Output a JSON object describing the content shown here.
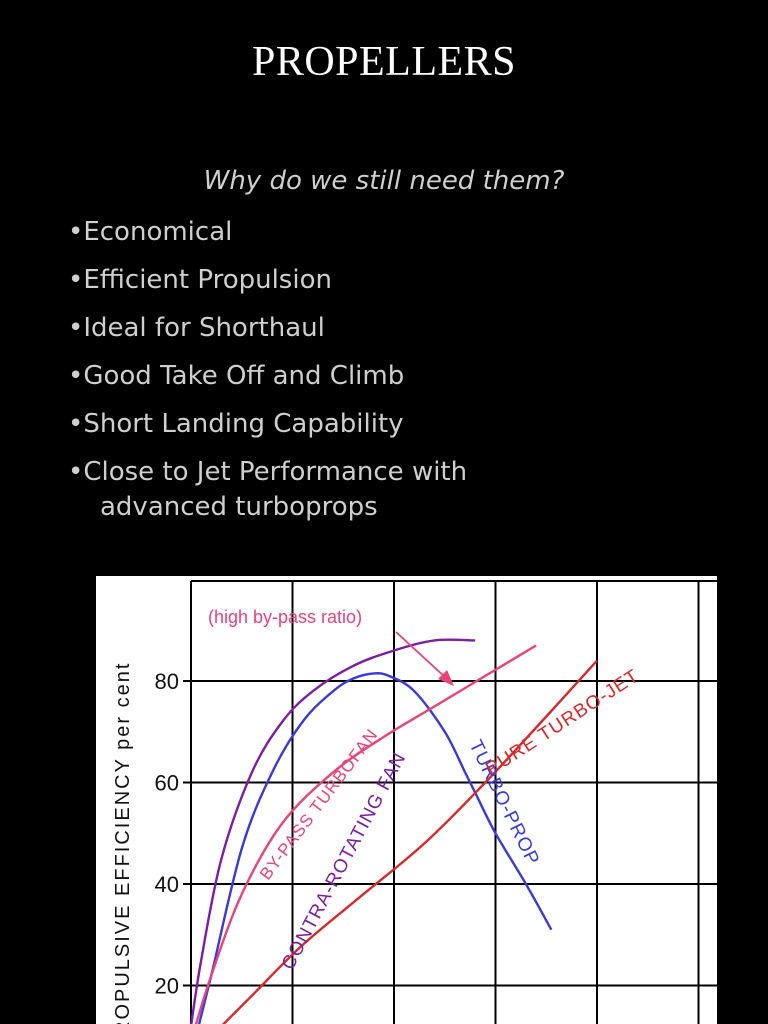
{
  "slide": {
    "title": "PROPELLERS",
    "subtitle": "Why do we still need them?",
    "bullets": [
      "•Economical",
      "•Efficient Propulsion",
      "•Ideal for Shorthaul",
      "•Good Take Off and Climb",
      "•Short Landing Capability",
      "•Close to Jet Performance with"
    ],
    "bullet_continuation": "advanced turboprops"
  },
  "chart_data": {
    "type": "line",
    "title": "",
    "xlabel": "",
    "ylabel": "PROPULSIVE EFFICIENCY  per cent",
    "ylabel_visible": "ROPULSIVE EFFICIENCY  per cent",
    "ylim": [
      20,
      90
    ],
    "yticks": [
      20,
      40,
      60,
      80
    ],
    "ytick_labels": [
      "20",
      "40",
      "60",
      "80"
    ],
    "xlim": [
      0,
      5
    ],
    "grid": true,
    "annotation": "(high by-pass ratio)",
    "series": [
      {
        "name": "CONTRA-ROTATING FAN",
        "color": "#7a1fa2",
        "x": [
          0.0,
          0.1,
          0.3,
          0.6,
          0.9,
          1.2,
          1.6,
          2.0,
          2.4,
          2.8
        ],
        "y": [
          12,
          25,
          45,
          62,
          72,
          78,
          83,
          86,
          88,
          88
        ]
      },
      {
        "name": "TURBO-PROP",
        "color": "#3a3ad6",
        "x": [
          0.05,
          0.2,
          0.5,
          0.8,
          1.1,
          1.4,
          1.6,
          1.8,
          1.95,
          2.2,
          2.5,
          2.7,
          2.8,
          3.0,
          3.3,
          3.55
        ],
        "y": [
          10,
          22,
          47,
          62,
          72,
          78,
          80.5,
          81.5,
          81,
          78,
          70,
          62,
          58,
          50,
          40,
          31
        ]
      },
      {
        "name": "BY-PASS TURBOFAN",
        "color": "#e8437a",
        "x": [
          0.0,
          0.2,
          0.5,
          0.9,
          1.4,
          1.9,
          2.4,
          2.9,
          3.4
        ],
        "y": [
          9,
          22,
          38,
          52,
          62,
          69,
          75,
          81,
          87
        ]
      },
      {
        "name": "PURE TURBO-JET",
        "color": "#d42a2a",
        "x": [
          0.2,
          0.6,
          1.1,
          1.7,
          2.3,
          2.9,
          3.5,
          4.0
        ],
        "y": [
          10,
          18,
          28,
          38,
          48,
          60,
          73,
          84
        ]
      }
    ],
    "curve_labels": [
      {
        "text": "CONTRA-ROTATING FAN",
        "color": "#7a1fa2"
      },
      {
        "text": "BY-PASS TURBOFAN",
        "color": "#e8437a"
      },
      {
        "text": "TURBO-PROP",
        "color": "#3a3ad6"
      },
      {
        "text": "PURE TURBO-JET",
        "color": "#d42a2a"
      }
    ],
    "annotation_color": "#e8437a",
    "grid_color": "#000000"
  }
}
